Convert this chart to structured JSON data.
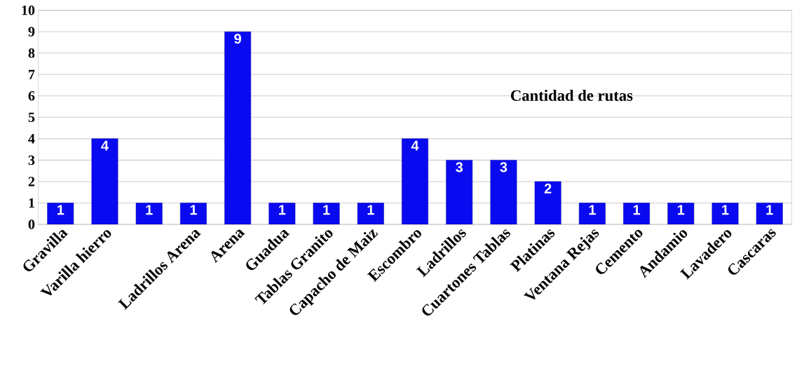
{
  "chart_data": {
    "type": "bar",
    "categories": [
      "Gravilla",
      "Varilla hierro",
      null,
      "Ladrillos Arena",
      "Arena",
      "Guadua",
      "Tablas Granito",
      "Capacho de Maiz",
      "Escombro",
      "Ladrillos",
      "Cuartones Tablas",
      "Platinas",
      "Ventana  Rejas",
      "Cemento",
      "Andamio",
      "Lavadero",
      "Cascaras"
    ],
    "series": [
      {
        "name": "Cantidad de rutas",
        "color": "#0a0af0",
        "values": [
          1,
          4,
          1,
          1,
          9,
          1,
          1,
          1,
          4,
          3,
          3,
          2,
          1,
          1,
          1,
          1,
          1
        ]
      }
    ],
    "ylim": [
      0,
      10
    ],
    "yticks": [
      0,
      1,
      2,
      3,
      4,
      5,
      6,
      7,
      8,
      9,
      10
    ],
    "grid": "y",
    "legend": "right",
    "data_labels": true
  }
}
